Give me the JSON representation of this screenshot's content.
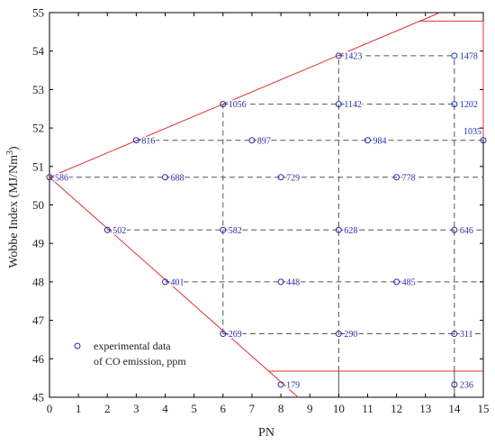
{
  "chart_data": {
    "type": "scatter",
    "title": "",
    "xlabel": "PN",
    "ylabel": "Wobbe Index (MJ/Nm",
    "ylabel_sup": "3",
    "ylabel_close": ")",
    "xlim": [
      0,
      15
    ],
    "ylim": [
      45,
      55
    ],
    "x_ticks": [
      "0",
      "1",
      "2",
      "3",
      "4",
      "5",
      "6",
      "7",
      "8",
      "9",
      "10",
      "11",
      "12",
      "13",
      "14",
      "15"
    ],
    "y_ticks": [
      "45",
      "46",
      "47",
      "48",
      "49",
      "50",
      "51",
      "52",
      "53",
      "54",
      "55"
    ],
    "grid": false,
    "legend": {
      "position": "bottom-left",
      "entries": [
        "experimental data",
        "of CO emission, ppm"
      ]
    },
    "colors": {
      "points": "#2b2bb0",
      "boundary": "#e03030",
      "guides": "#555555"
    },
    "series": [
      {
        "name": "experimental data of CO emission, ppm",
        "points": [
          {
            "x": 0,
            "y": 50.72,
            "label": "586"
          },
          {
            "x": 2,
            "y": 49.35,
            "label": "502"
          },
          {
            "x": 3,
            "y": 51.68,
            "label": "816"
          },
          {
            "x": 4,
            "y": 50.72,
            "label": "688"
          },
          {
            "x": 4,
            "y": 48.0,
            "label": "401"
          },
          {
            "x": 6,
            "y": 52.62,
            "label": "1056"
          },
          {
            "x": 6,
            "y": 49.35,
            "label": "582"
          },
          {
            "x": 6,
            "y": 46.65,
            "label": "269"
          },
          {
            "x": 7,
            "y": 51.68,
            "label": "897"
          },
          {
            "x": 8,
            "y": 50.72,
            "label": "729"
          },
          {
            "x": 8,
            "y": 48.0,
            "label": "448"
          },
          {
            "x": 8,
            "y": 45.33,
            "label": "179"
          },
          {
            "x": 10,
            "y": 53.88,
            "label": "1423"
          },
          {
            "x": 10,
            "y": 52.62,
            "label": "1142"
          },
          {
            "x": 10,
            "y": 49.35,
            "label": "628"
          },
          {
            "x": 10,
            "y": 46.65,
            "label": "290"
          },
          {
            "x": 11,
            "y": 51.68,
            "label": "984"
          },
          {
            "x": 12,
            "y": 50.72,
            "label": "778"
          },
          {
            "x": 12,
            "y": 48.0,
            "label": "485"
          },
          {
            "x": 14,
            "y": 53.88,
            "label": "1478"
          },
          {
            "x": 14,
            "y": 52.62,
            "label": "1202"
          },
          {
            "x": 14,
            "y": 49.35,
            "label": "646"
          },
          {
            "x": 14,
            "y": 46.65,
            "label": "311"
          },
          {
            "x": 14,
            "y": 45.33,
            "label": "236"
          },
          {
            "x": 15,
            "y": 51.68,
            "label": "1035",
            "label_above": true
          }
        ]
      }
    ],
    "boundary_lines": [
      {
        "x": [
          0,
          13.5
        ],
        "y": [
          50.72,
          55.0
        ]
      },
      {
        "x": [
          12.8,
          15
        ],
        "y": [
          54.78,
          54.78
        ]
      },
      {
        "x": [
          15,
          15
        ],
        "y": [
          54.78,
          51.68
        ]
      },
      {
        "x": [
          0,
          8.6
        ],
        "y": [
          50.72,
          45.0
        ]
      },
      {
        "x": [
          7.6,
          15
        ],
        "y": [
          45.68,
          45.68
        ]
      }
    ],
    "guide_lines": [
      {
        "x": [
          10,
          14
        ],
        "y": [
          53.88,
          53.88
        ]
      },
      {
        "x": [
          6,
          14
        ],
        "y": [
          52.62,
          52.62
        ]
      },
      {
        "x": [
          3,
          15
        ],
        "y": [
          51.68,
          51.68
        ]
      },
      {
        "x": [
          0,
          15
        ],
        "y": [
          50.72,
          50.72
        ]
      },
      {
        "x": [
          2,
          15
        ],
        "y": [
          49.35,
          49.35
        ]
      },
      {
        "x": [
          4,
          15
        ],
        "y": [
          48.0,
          48.0
        ]
      },
      {
        "x": [
          6,
          15
        ],
        "y": [
          46.65,
          46.65
        ]
      },
      {
        "x": [
          6,
          6
        ],
        "y": [
          46.65,
          52.62
        ]
      },
      {
        "x": [
          10,
          10
        ],
        "y": [
          45.68,
          53.88
        ]
      },
      {
        "x": [
          14,
          14
        ],
        "y": [
          45.68,
          53.88
        ]
      }
    ],
    "solid_dividers": [
      {
        "x": [
          10,
          10
        ],
        "y": [
          45.0,
          45.68
        ]
      },
      {
        "x": [
          14,
          14
        ],
        "y": [
          45.0,
          45.68
        ]
      }
    ]
  }
}
